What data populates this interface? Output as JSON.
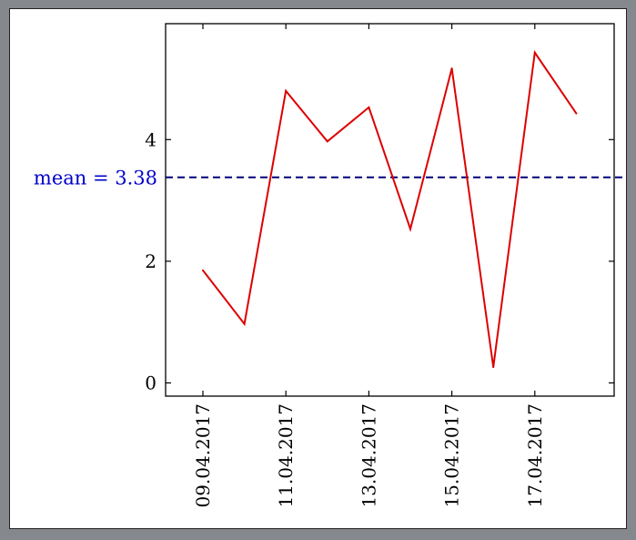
{
  "chart_data": {
    "type": "line",
    "title": "",
    "xlabel": "",
    "ylabel": "",
    "x": [
      "09.04.2017",
      "10.04.2017",
      "11.04.2017",
      "12.04.2017",
      "13.04.2017",
      "14.04.2017",
      "15.04.2017",
      "16.04.2017",
      "17.04.2017",
      "18.04.2017"
    ],
    "series": [
      {
        "values": [
          1.85,
          0.97,
          4.8,
          3.97,
          4.53,
          2.53,
          5.17,
          0.26,
          5.43,
          4.43
        ],
        "color": "#dd0000"
      }
    ],
    "mean": {
      "value": 3.38,
      "label": "mean = 3.38",
      "color": "#0000cc",
      "line_color": "#00007a"
    },
    "xticks": [
      "09.04.2017",
      "11.04.2017",
      "13.04.2017",
      "15.04.2017",
      "17.04.2017"
    ],
    "yticks": [
      0,
      2,
      4
    ],
    "ylim": [
      -0.2,
      6.0
    ],
    "grid": false
  }
}
